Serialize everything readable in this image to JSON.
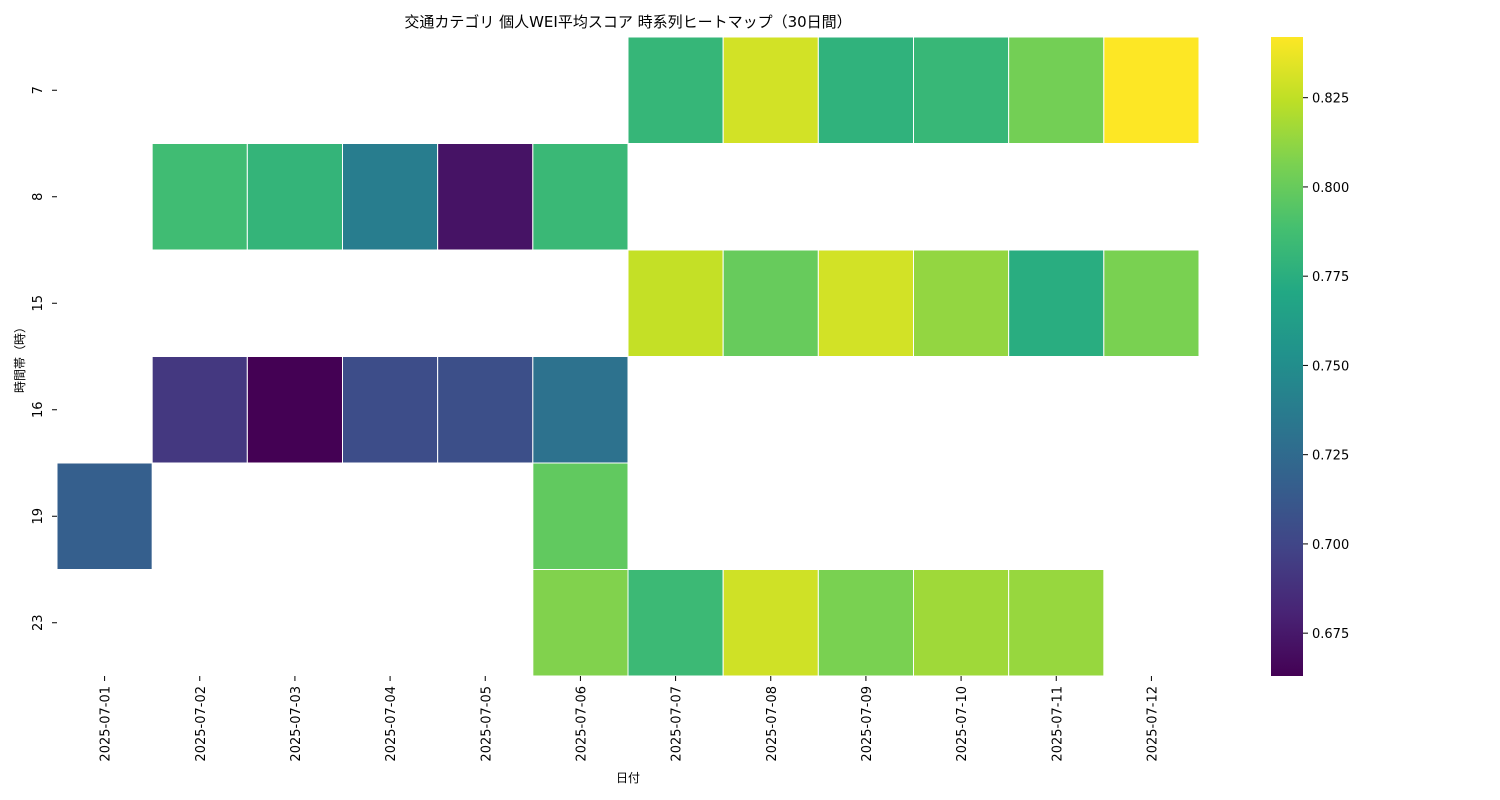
{
  "chart_data": {
    "type": "heatmap",
    "title": "交通カテゴリ 個人WEI平均スコア 時系列ヒートマップ（30日間）",
    "xlabel": "日付",
    "ylabel": "時間帯（時）",
    "x": [
      "2025-07-01",
      "2025-07-02",
      "2025-07-03",
      "2025-07-04",
      "2025-07-05",
      "2025-07-06",
      "2025-07-07",
      "2025-07-08",
      "2025-07-09",
      "2025-07-10",
      "2025-07-11",
      "2025-07-12"
    ],
    "y": [
      "7",
      "8",
      "15",
      "16",
      "19",
      "23"
    ],
    "values": [
      [
        null,
        null,
        null,
        null,
        null,
        null,
        0.781,
        0.83,
        0.778,
        0.782,
        0.804,
        0.842
      ],
      [
        null,
        0.786,
        0.78,
        0.738,
        0.672,
        0.783,
        null,
        null,
        null,
        null,
        null,
        null
      ],
      [
        null,
        null,
        null,
        null,
        null,
        null,
        0.826,
        0.8,
        0.83,
        0.813,
        0.774,
        0.806
      ],
      [
        null,
        0.692,
        0.663,
        0.705,
        0.706,
        0.73,
        null,
        null,
        null,
        null,
        null,
        null
      ],
      [
        0.717,
        null,
        null,
        null,
        null,
        0.798,
        null,
        null,
        null,
        null,
        null,
        null
      ],
      [
        null,
        null,
        null,
        null,
        null,
        0.808,
        0.784,
        0.829,
        0.806,
        0.816,
        0.814,
        null
      ]
    ],
    "colormap": "viridis",
    "colorbar": {
      "vmin": 0.663,
      "vmax": 0.842,
      "ticks": [
        0.675,
        0.7,
        0.725,
        0.75,
        0.775,
        0.8,
        0.825
      ],
      "tick_labels": [
        "0.675",
        "0.700",
        "0.725",
        "0.750",
        "0.775",
        "0.800",
        "0.825"
      ]
    },
    "grid": false,
    "legend": "colorbar-right"
  }
}
